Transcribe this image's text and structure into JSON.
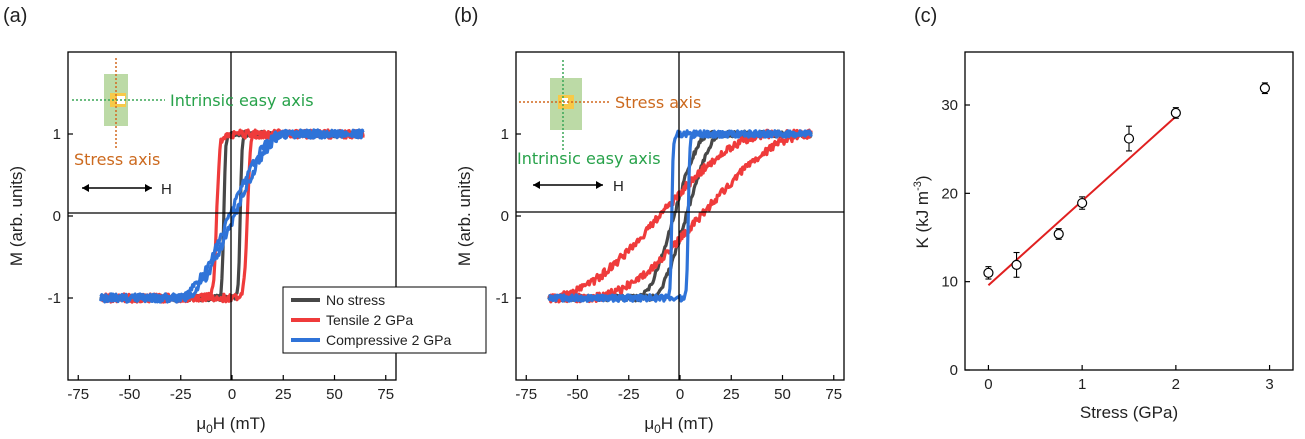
{
  "chart_data": [
    {
      "type": "line",
      "panel_label": "(a)",
      "xlabel_prefix": "μ",
      "xlabel_sub": "0",
      "xlabel_suffix": "H (mT)",
      "ylabel": "M (arb. units)",
      "xlim": [
        -80,
        80
      ],
      "ylim": [
        -2,
        2
      ],
      "xticks": [
        "-75",
        "-50",
        "-25",
        "0",
        "25",
        "50",
        "75"
      ],
      "yticks": [
        "-1",
        "0",
        "1"
      ],
      "inset": {
        "axis_label_1": "Intrinsic easy axis",
        "axis_label_2": "Stress axis",
        "field_label": "H"
      },
      "legend": {
        "placement": "bottom-right",
        "entries": [
          {
            "label": "No stress",
            "color": "#474747"
          },
          {
            "label": "Tensile 2 GPa",
            "color": "#ef3b3b"
          },
          {
            "label": "Compressive 2 GPa",
            "color": "#2f73d8"
          }
        ]
      },
      "series": [
        {
          "name": "No stress",
          "color": "#474747",
          "shape": "square",
          "hc": 4,
          "xsat": 5,
          "noise": 0.035
        },
        {
          "name": "Tensile 2 GPa",
          "color": "#ef3b3b",
          "shape": "square",
          "hc": 7.5,
          "xsat": 8,
          "noise": 0.05
        },
        {
          "name": "Compressive 2 GPa",
          "color": "#2f73d8",
          "shape": "sigmoid",
          "hc": 1.2,
          "xsat": 26,
          "noise": 0.05
        }
      ]
    },
    {
      "type": "line",
      "panel_label": "(b)",
      "xlabel_prefix": "μ",
      "xlabel_sub": "0",
      "xlabel_suffix": "H (mT)",
      "ylabel": "M (arb. units)",
      "xlim": [
        -80,
        80
      ],
      "ylim": [
        -2,
        2
      ],
      "xticks": [
        "-75",
        "-50",
        "-25",
        "0",
        "25",
        "50",
        "75"
      ],
      "yticks": [
        "-1",
        "0",
        "1"
      ],
      "inset": {
        "axis_label_1": "Stress axis",
        "axis_label_2": "Intrinsic easy axis",
        "field_label": "H"
      },
      "series": [
        {
          "name": "No stress",
          "color": "#474747",
          "shape": "sigmoid",
          "hc": 3,
          "xsat": 18,
          "noise": 0.035
        },
        {
          "name": "Tensile 2 GPa",
          "color": "#ef3b3b",
          "shape": "sigmoid",
          "hc": 10,
          "xsat": 55,
          "noise": 0.05
        },
        {
          "name": "Compressive 2 GPa",
          "color": "#2f73d8",
          "shape": "square",
          "hc": 4,
          "xsat": 4,
          "noise": 0.04
        }
      ]
    },
    {
      "type": "scatter",
      "panel_label": "(c)",
      "xlabel": "Stress (GPa)",
      "ylabel_main": "K (kJ m",
      "ylabel_sup": "-3",
      "ylabel_end": ")",
      "xlim": [
        -0.25,
        3.25
      ],
      "ylim": [
        0,
        36
      ],
      "xticks": [
        "0",
        "1",
        "2",
        "3"
      ],
      "yticks": [
        "0",
        "10",
        "20",
        "30"
      ],
      "points": [
        {
          "x": 0.0,
          "y": 11.0,
          "err": 0.7
        },
        {
          "x": 0.3,
          "y": 11.9,
          "err": 1.4
        },
        {
          "x": 0.75,
          "y": 15.4,
          "err": 0.6
        },
        {
          "x": 1.0,
          "y": 18.9,
          "err": 0.7
        },
        {
          "x": 1.5,
          "y": 26.2,
          "err": 1.4
        },
        {
          "x": 2.0,
          "y": 29.1,
          "err": 0.6
        },
        {
          "x": 2.95,
          "y": 31.9,
          "err": 0.6
        }
      ],
      "fit": {
        "x": [
          0,
          2
        ],
        "y": [
          9.6,
          28.7
        ],
        "color": "#e02020"
      }
    }
  ]
}
